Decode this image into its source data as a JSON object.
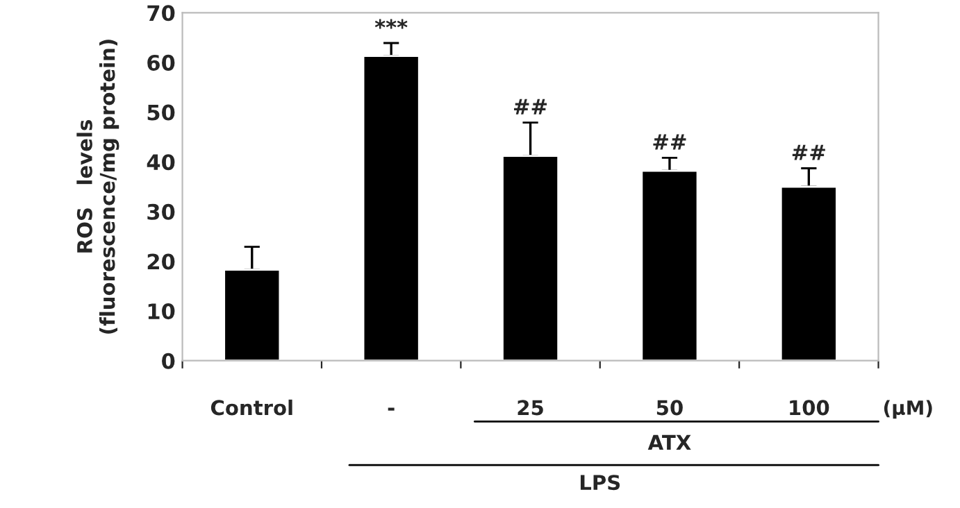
{
  "chart_data": {
    "type": "bar",
    "ylabel": "ROS   levels\n(fluorescence/mg protein)",
    "categories": [
      "Control",
      "-",
      "25",
      "50",
      "100"
    ],
    "values": [
      18.3,
      61.3,
      41.2,
      38.2,
      35.0
    ],
    "errors": [
      [
        18.3,
        22.9
      ],
      [
        61.3,
        63.9
      ],
      [
        41.2,
        47.9
      ],
      [
        38.2,
        40.8
      ],
      [
        35.0,
        38.7
      ]
    ],
    "color": "#000000",
    "ylim": [
      0,
      70
    ],
    "yticks": [
      0,
      10,
      20,
      30,
      40,
      50,
      60,
      70
    ],
    "grid": false,
    "legend": false,
    "annotations": [
      {
        "text": "***",
        "x": "-",
        "y": 63.9
      },
      {
        "text": "##",
        "x": "25",
        "y": 47.9
      },
      {
        "text": "##",
        "x": "50",
        "y": 40.8
      },
      {
        "text": "##",
        "x": "100",
        "y": 38.7
      },
      "(μM)",
      "ATX",
      "LPS"
    ]
  }
}
